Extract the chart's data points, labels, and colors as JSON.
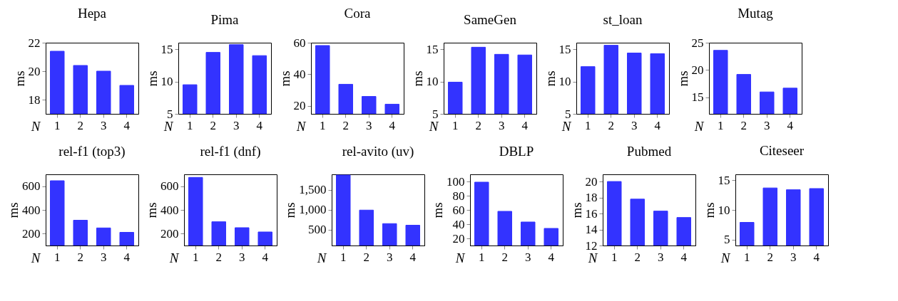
{
  "chart_data": [
    {
      "type": "bar",
      "title": "Hepa",
      "xlabel": "N",
      "ylabel": "ms",
      "categories": [
        "1",
        "2",
        "3",
        "4"
      ],
      "values": [
        21.4,
        20.4,
        20.0,
        19.0
      ],
      "color": "#3333ff",
      "ylim": [
        17,
        22
      ],
      "yticks": [
        18,
        20,
        22
      ]
    },
    {
      "type": "bar",
      "title": "Pima",
      "xlabel": "N",
      "ylabel": "ms",
      "categories": [
        "1",
        "2",
        "3",
        "4"
      ],
      "values": [
        9.5,
        14.5,
        15.7,
        14.0
      ],
      "color": "#3333ff",
      "ylim": [
        5,
        16
      ],
      "yticks": [
        5,
        10,
        15
      ]
    },
    {
      "type": "bar",
      "title": "Cora",
      "xlabel": "N",
      "ylabel": "ms",
      "categories": [
        "1",
        "2",
        "3",
        "4"
      ],
      "values": [
        58.2,
        33.7,
        26.0,
        21.1
      ],
      "color": "#3333ff",
      "ylim": [
        15,
        60
      ],
      "yticks": [
        20,
        40,
        60
      ]
    },
    {
      "type": "bar",
      "title": "SameGen",
      "xlabel": "N",
      "ylabel": "ms",
      "categories": [
        "1",
        "2",
        "3",
        "4"
      ],
      "values": [
        9.9,
        15.3,
        14.2,
        14.1
      ],
      "color": "#3333ff",
      "ylim": [
        5,
        16
      ],
      "yticks": [
        5,
        10,
        15
      ]
    },
    {
      "type": "bar",
      "title": "st_loan",
      "xlabel": "N",
      "ylabel": "ms",
      "categories": [
        "1",
        "2",
        "3",
        "4"
      ],
      "values": [
        12.3,
        15.6,
        14.4,
        14.3
      ],
      "color": "#3333ff",
      "ylim": [
        5,
        16
      ],
      "yticks": [
        5,
        10,
        15
      ]
    },
    {
      "type": "bar",
      "title": "Mutag",
      "xlabel": "N",
      "ylabel": "ms",
      "categories": [
        "1",
        "2",
        "3",
        "4"
      ],
      "values": [
        23.6,
        19.2,
        16.0,
        16.7
      ],
      "color": "#3333ff",
      "ylim": [
        12,
        25
      ],
      "yticks": [
        15,
        20,
        25
      ]
    },
    {
      "type": "bar",
      "title": "rel-f1 (top3)",
      "xlabel": "N",
      "ylabel": "ms",
      "categories": [
        "1",
        "2",
        "3",
        "4"
      ],
      "values": [
        646,
        313,
        248,
        211
      ],
      "color": "#3333ff",
      "ylim": [
        100,
        700
      ],
      "yticks": [
        200,
        400,
        600
      ]
    },
    {
      "type": "bar",
      "title": "rel-f1 (dnf)",
      "xlabel": "N",
      "ylabel": "ms",
      "categories": [
        "1",
        "2",
        "3",
        "4"
      ],
      "values": [
        674,
        300,
        250,
        214
      ],
      "color": "#3333ff",
      "ylim": [
        100,
        700
      ],
      "yticks": [
        200,
        400,
        600
      ]
    },
    {
      "type": "bar",
      "title": "rel-avito (uv)",
      "xlabel": "N",
      "ylabel": "ms",
      "categories": [
        "1",
        "2",
        "3",
        "4"
      ],
      "values": [
        1870,
        990,
        650,
        610
      ],
      "color": "#3333ff",
      "ylim": [
        100,
        1890
      ],
      "yticks": [
        500,
        {
          "value": 1000,
          "label": "1,000"
        },
        {
          "value": 1500,
          "label": "1,500"
        }
      ]
    },
    {
      "type": "bar",
      "title": "DBLP",
      "xlabel": "N",
      "ylabel": "ms",
      "categories": [
        "1",
        "2",
        "3",
        "4"
      ],
      "values": [
        99,
        58,
        43,
        34
      ],
      "color": "#3333ff",
      "ylim": [
        10,
        110
      ],
      "yticks": [
        20,
        40,
        60,
        80,
        100
      ]
    },
    {
      "type": "bar",
      "title": "Pubmed",
      "xlabel": "N",
      "ylabel": "ms",
      "categories": [
        "1",
        "2",
        "3",
        "4"
      ],
      "values": [
        20.0,
        17.8,
        16.3,
        15.5
      ],
      "color": "#3333ff",
      "ylim": [
        12,
        20.9
      ],
      "yticks": [
        12,
        14,
        16,
        18,
        20
      ]
    },
    {
      "type": "bar",
      "title": "Citeseer",
      "xlabel": "N",
      "ylabel": "ms",
      "categories": [
        "1",
        "2",
        "3",
        "4"
      ],
      "values": [
        7.9,
        13.7,
        13.4,
        13.6
      ],
      "color": "#3333ff",
      "ylim": [
        4,
        16
      ],
      "yticks": [
        5,
        10,
        15
      ]
    }
  ]
}
